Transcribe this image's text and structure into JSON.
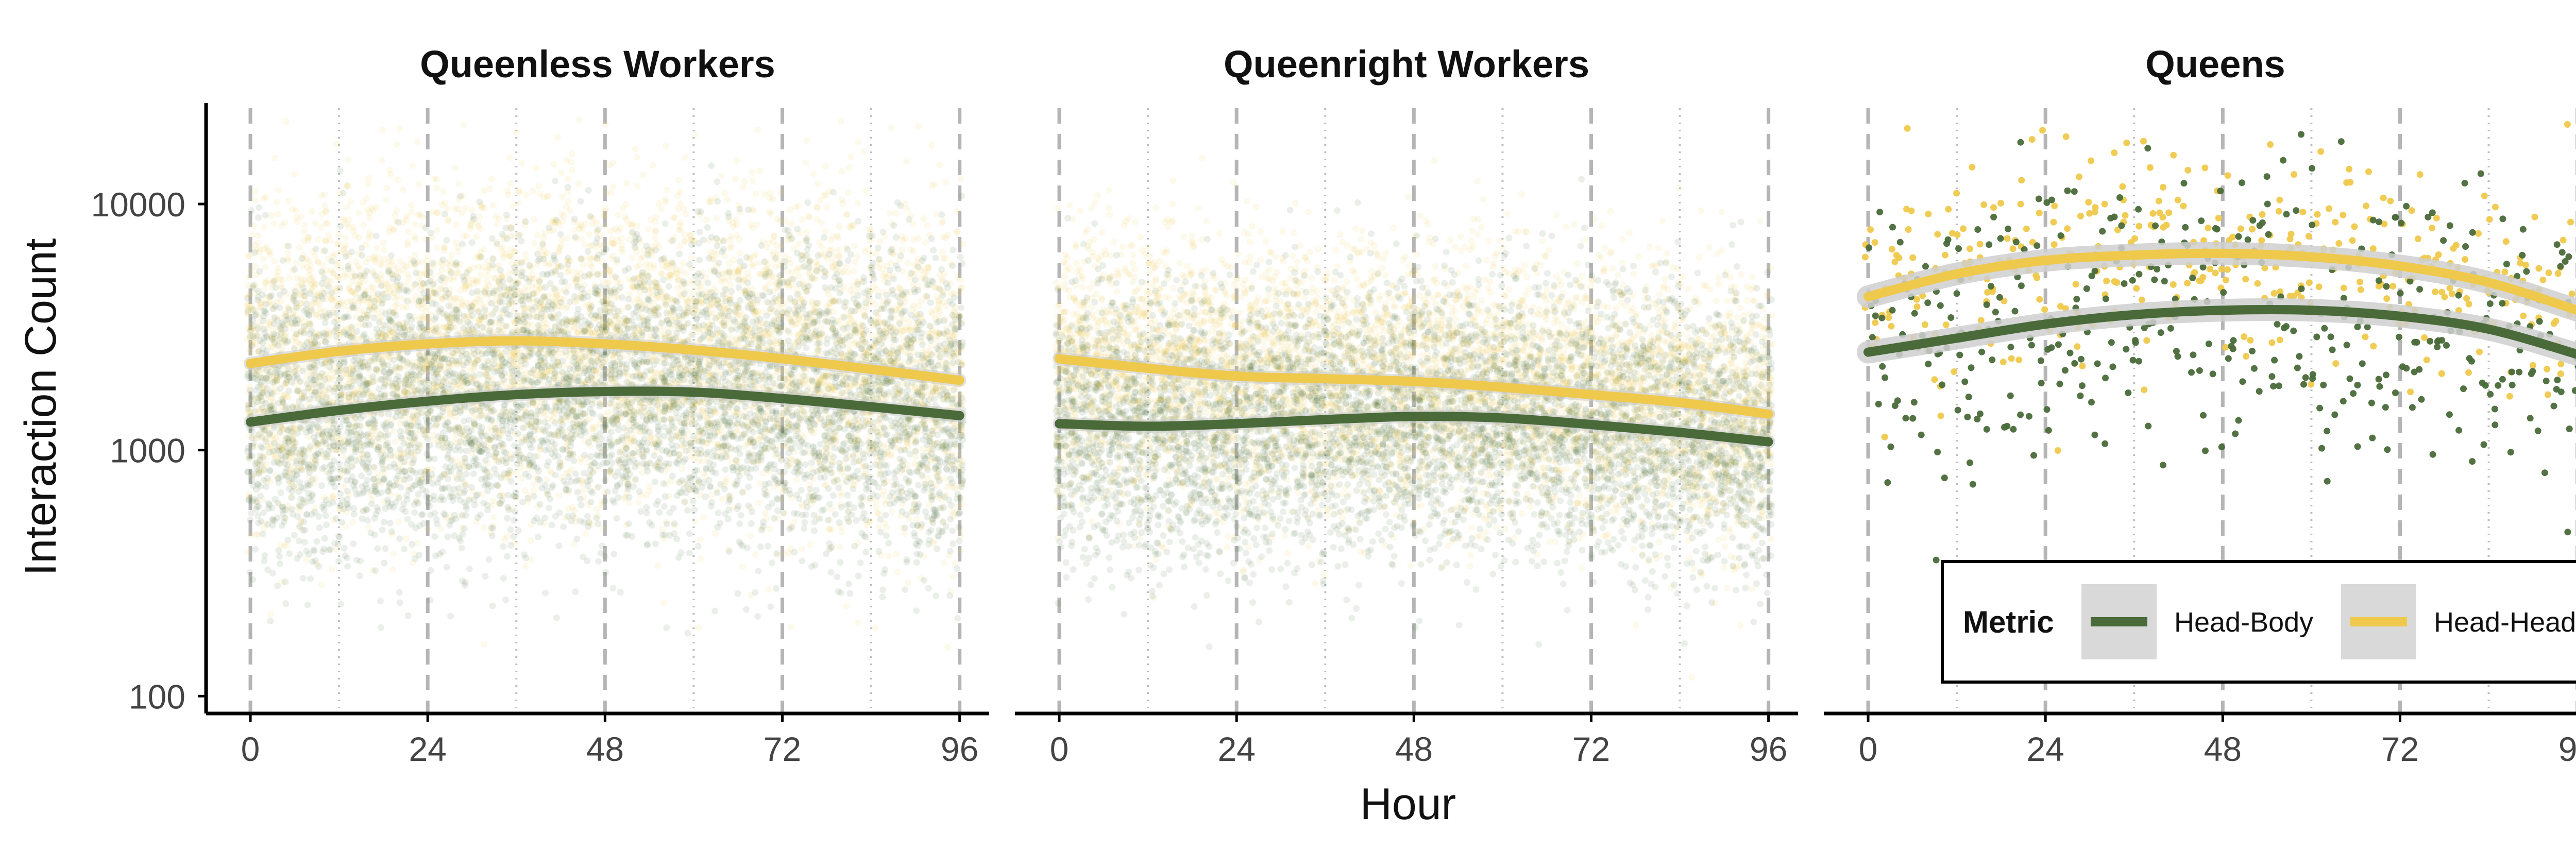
{
  "chart_data": {
    "type": "scatter",
    "ylabel": "Interaction Count",
    "xlabel": "Hour",
    "y_scale": "log10",
    "ylim": [
      85,
      27000
    ],
    "xlim": [
      -6,
      100
    ],
    "x_ticks": [
      0,
      24,
      48,
      72,
      96
    ],
    "x_tick_labels": [
      "0",
      "24",
      "48",
      "72",
      "96"
    ],
    "y_ticks": [
      100,
      1000,
      10000
    ],
    "y_tick_labels": [
      "100",
      "1000",
      "10000"
    ],
    "reference_lines": {
      "dashed_hours": [
        0,
        24,
        48,
        72,
        96
      ],
      "dotted_hours": [
        12,
        36,
        60,
        84
      ]
    },
    "series_colors": {
      "Head-Body": "#4a6a3a",
      "Head-Head": "#efc94c"
    },
    "legend": {
      "title": "Metric",
      "entries": [
        "Head-Body",
        "Head-Head"
      ],
      "placement": "bottom-right of Queens panel"
    },
    "panels": [
      {
        "title": "Queenless Workers",
        "series": [
          {
            "name": "Head-Body",
            "smooth_x": [
              0,
              12,
              24,
              36,
              48,
              60,
              72,
              84,
              96
            ],
            "smooth_y": [
              1300,
              1450,
              1580,
              1680,
              1730,
              1720,
              1620,
              1500,
              1380
            ],
            "scatter_center": [
              1300,
              1450,
              1580,
              1680,
              1730,
              1720,
              1620,
              1500,
              1380
            ],
            "scatter_spread_log10": 0.3
          },
          {
            "name": "Head-Head",
            "smooth_x": [
              0,
              12,
              24,
              36,
              48,
              60,
              72,
              84,
              96
            ],
            "smooth_y": [
              2250,
              2520,
              2700,
              2780,
              2700,
              2550,
              2350,
              2130,
              1920
            ],
            "scatter_center": [
              2250,
              2520,
              2700,
              2780,
              2700,
              2550,
              2350,
              2130,
              1920
            ],
            "scatter_spread_log10": 0.33
          }
        ]
      },
      {
        "title": "Queenright Workers",
        "series": [
          {
            "name": "Head-Body",
            "smooth_x": [
              0,
              12,
              24,
              36,
              48,
              60,
              72,
              84,
              96
            ],
            "smooth_y": [
              1280,
              1250,
              1280,
              1330,
              1370,
              1350,
              1270,
              1180,
              1080
            ],
            "scatter_center": [
              1280,
              1250,
              1280,
              1330,
              1370,
              1350,
              1270,
              1180,
              1080
            ],
            "scatter_spread_log10": 0.27
          },
          {
            "name": "Head-Head",
            "smooth_x": [
              0,
              12,
              24,
              36,
              48,
              60,
              72,
              84,
              96
            ],
            "smooth_y": [
              2350,
              2150,
              2000,
              1950,
              1900,
              1800,
              1680,
              1560,
              1400
            ],
            "scatter_center": [
              2350,
              2150,
              2000,
              1950,
              1900,
              1800,
              1680,
              1560,
              1400
            ],
            "scatter_spread_log10": 0.27
          }
        ]
      },
      {
        "title": "Queens",
        "series": [
          {
            "name": "Head-Body",
            "smooth_x": [
              0,
              12,
              24,
              36,
              48,
              60,
              72,
              84,
              96
            ],
            "smooth_y": [
              2500,
              2850,
              3250,
              3550,
              3700,
              3700,
              3500,
              3100,
              2450
            ],
            "scatter_center": [
              2500,
              2850,
              3250,
              3550,
              3700,
              3700,
              3500,
              3100,
              2450
            ],
            "scatter_spread_log10": 0.3
          },
          {
            "name": "Head-Head",
            "smooth_x": [
              0,
              12,
              24,
              36,
              48,
              60,
              72,
              84,
              96
            ],
            "smooth_y": [
              4200,
              5200,
              5900,
              6200,
              6300,
              6100,
              5600,
              4800,
              3700
            ],
            "scatter_center": [
              4200,
              5200,
              5900,
              6200,
              6300,
              6100,
              5600,
              4800,
              3700
            ],
            "scatter_spread_log10": 0.22
          }
        ]
      }
    ]
  }
}
